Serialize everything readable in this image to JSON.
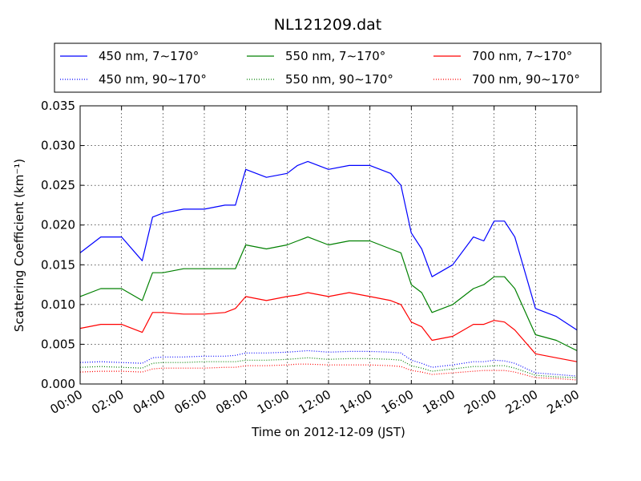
{
  "chart_data": {
    "type": "line",
    "title": "NL121209.dat",
    "xlabel": "Time on 2012-12-09 (JST)",
    "ylabel": "Scattering Coefficient (km⁻¹)",
    "xlim": [
      0,
      24
    ],
    "ylim": [
      0,
      0.035
    ],
    "grid": true,
    "legend_position": "top",
    "xticks": [
      0,
      2,
      4,
      6,
      8,
      10,
      12,
      14,
      16,
      18,
      20,
      22,
      24
    ],
    "xtick_labels": [
      "00:00",
      "02:00",
      "04:00",
      "06:00",
      "08:00",
      "10:00",
      "12:00",
      "14:00",
      "16:00",
      "18:00",
      "20:00",
      "22:00",
      "24:00"
    ],
    "yticks": [
      0,
      0.005,
      0.01,
      0.015,
      0.02,
      0.025,
      0.03,
      0.035
    ],
    "ytick_labels": [
      "0.000",
      "0.005",
      "0.010",
      "0.015",
      "0.020",
      "0.025",
      "0.030",
      "0.035"
    ],
    "x": [
      0,
      1,
      2,
      3,
      3.5,
      4,
      5,
      6,
      7,
      7.5,
      8,
      9,
      10,
      10.5,
      11,
      12,
      13,
      14,
      15,
      15.5,
      16,
      16.5,
      17,
      18,
      19,
      19.5,
      20,
      20.5,
      21,
      22,
      23,
      24
    ],
    "series": [
      {
        "name": "450 nm, 7∼170°",
        "color": "#0000ff",
        "style": "solid",
        "values": [
          0.0165,
          0.0185,
          0.0185,
          0.0155,
          0.021,
          0.0215,
          0.022,
          0.022,
          0.0225,
          0.0225,
          0.027,
          0.026,
          0.0265,
          0.0275,
          0.028,
          0.027,
          0.0275,
          0.0275,
          0.0265,
          0.025,
          0.019,
          0.017,
          0.0135,
          0.015,
          0.0185,
          0.018,
          0.0205,
          0.0205,
          0.0185,
          0.0095,
          0.0085,
          0.0068
        ]
      },
      {
        "name": "550 nm, 7∼170°",
        "color": "#008000",
        "style": "solid",
        "values": [
          0.011,
          0.012,
          0.012,
          0.0105,
          0.014,
          0.014,
          0.0145,
          0.0145,
          0.0145,
          0.0145,
          0.0175,
          0.017,
          0.0175,
          0.018,
          0.0185,
          0.0175,
          0.018,
          0.018,
          0.017,
          0.0165,
          0.0125,
          0.0115,
          0.009,
          0.01,
          0.012,
          0.0125,
          0.0135,
          0.0135,
          0.012,
          0.0062,
          0.0055,
          0.0042
        ]
      },
      {
        "name": "700 nm, 7∼170°",
        "color": "#ff0000",
        "style": "solid",
        "values": [
          0.007,
          0.0075,
          0.0075,
          0.0065,
          0.009,
          0.009,
          0.0088,
          0.0088,
          0.009,
          0.0095,
          0.011,
          0.0105,
          0.011,
          0.0112,
          0.0115,
          0.011,
          0.0115,
          0.011,
          0.0105,
          0.01,
          0.0078,
          0.0072,
          0.0055,
          0.006,
          0.0075,
          0.0075,
          0.008,
          0.0078,
          0.0068,
          0.0038,
          0.0033,
          0.0028
        ]
      },
      {
        "name": "450 nm, 90∼170°",
        "color": "#0000ff",
        "style": "dotted",
        "values": [
          0.0027,
          0.0028,
          0.0027,
          0.0026,
          0.0033,
          0.0034,
          0.0034,
          0.0035,
          0.0035,
          0.0036,
          0.0039,
          0.0039,
          0.004,
          0.0041,
          0.0042,
          0.004,
          0.0041,
          0.0041,
          0.004,
          0.0039,
          0.003,
          0.0026,
          0.0021,
          0.0024,
          0.0028,
          0.0028,
          0.003,
          0.0029,
          0.0026,
          0.0014,
          0.0012,
          0.001
        ]
      },
      {
        "name": "550 nm, 90∼170°",
        "color": "#008000",
        "style": "dotted",
        "values": [
          0.0021,
          0.0022,
          0.0021,
          0.002,
          0.0026,
          0.0027,
          0.0027,
          0.0028,
          0.0028,
          0.0028,
          0.003,
          0.003,
          0.0031,
          0.0032,
          0.0033,
          0.0031,
          0.0032,
          0.0032,
          0.0031,
          0.003,
          0.0023,
          0.002,
          0.0016,
          0.0019,
          0.0022,
          0.0022,
          0.0023,
          0.0023,
          0.002,
          0.0011,
          0.0009,
          0.0008
        ]
      },
      {
        "name": "700 nm, 90∼170°",
        "color": "#ff0000",
        "style": "dotted",
        "values": [
          0.0015,
          0.0016,
          0.0016,
          0.0015,
          0.0019,
          0.002,
          0.002,
          0.002,
          0.0021,
          0.0021,
          0.0023,
          0.0023,
          0.0024,
          0.0025,
          0.0025,
          0.0024,
          0.0024,
          0.0024,
          0.0023,
          0.0022,
          0.0017,
          0.0015,
          0.0012,
          0.0014,
          0.0016,
          0.0017,
          0.0017,
          0.0017,
          0.0015,
          0.0008,
          0.0007,
          0.0005
        ]
      }
    ]
  }
}
